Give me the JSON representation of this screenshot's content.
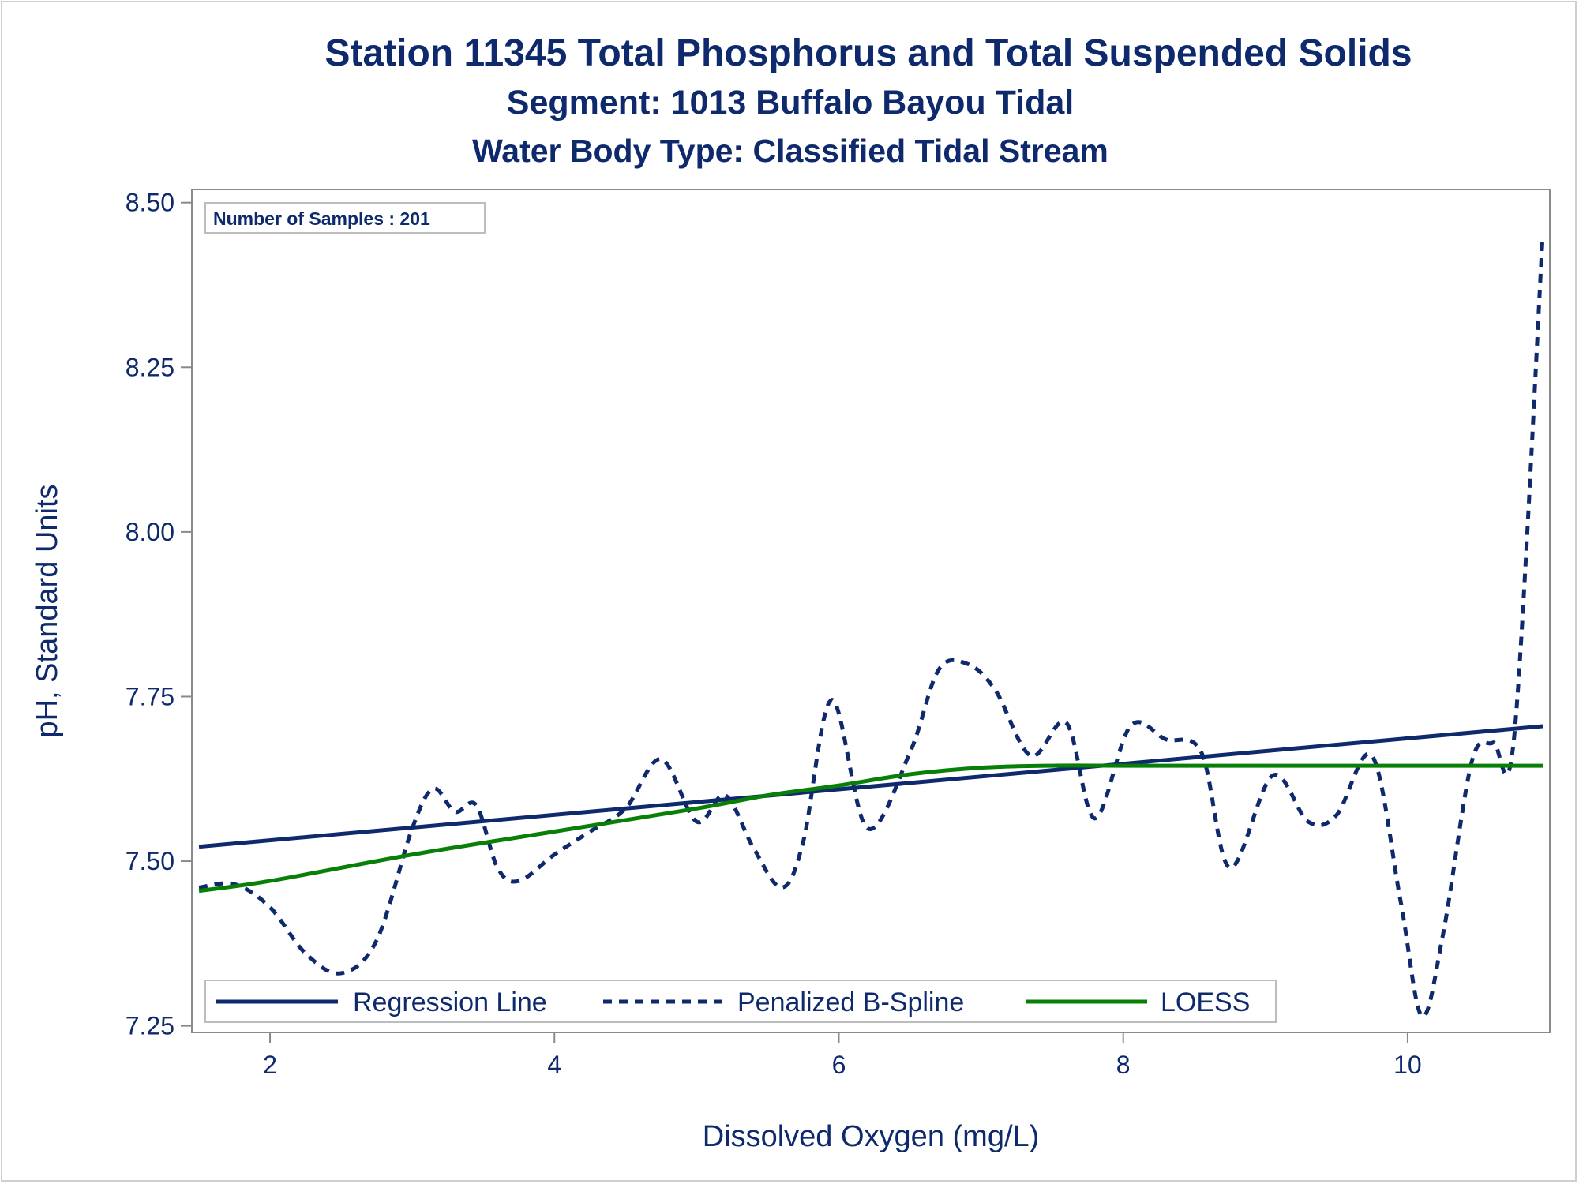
{
  "chart_data": {
    "type": "line",
    "title": "Station 11345  Total Phosphorus and Total Suspended Solids",
    "subtitle": "Segment: 1013  Buffalo Bayou Tidal",
    "subtitle2": "Water Body Type: Classified Tidal Stream",
    "xlabel": "Dissolved Oxygen (mg/L)",
    "ylabel": "pH, Standard Units",
    "xlim": [
      1.45,
      11.0
    ],
    "ylim": [
      7.24,
      8.52
    ],
    "xticks": [
      2,
      4,
      6,
      8,
      10
    ],
    "yticks": [
      7.25,
      7.5,
      7.75,
      8.0,
      8.25,
      8.5
    ],
    "ytick_labels": [
      "7.25",
      "7.50",
      "7.75",
      "8.00",
      "8.25",
      "8.50"
    ],
    "inset_text": "Number of Samples : 201",
    "legend_position": "bottom-left inside",
    "grid": false,
    "series": [
      {
        "name": "Regression Line",
        "color": "#0e2a6d",
        "style": "solid",
        "x": [
          1.5,
          10.95
        ],
        "y": [
          7.522,
          7.705
        ]
      },
      {
        "name": "Penalized B-Spline",
        "color": "#0e2a6d",
        "style": "dashed",
        "x": [
          1.5,
          1.75,
          2.0,
          2.25,
          2.5,
          2.75,
          3.0,
          3.15,
          3.3,
          3.45,
          3.6,
          3.75,
          4.0,
          4.25,
          4.5,
          4.75,
          5.0,
          5.2,
          5.4,
          5.6,
          5.75,
          5.95,
          6.2,
          6.5,
          6.7,
          6.9,
          7.1,
          7.35,
          7.6,
          7.8,
          8.05,
          8.3,
          8.55,
          8.75,
          9.05,
          9.3,
          9.5,
          9.75,
          9.95,
          10.1,
          10.25,
          10.45,
          10.6,
          10.75,
          10.95
        ],
        "y": [
          7.46,
          7.465,
          7.43,
          7.36,
          7.33,
          7.38,
          7.55,
          7.61,
          7.575,
          7.585,
          7.49,
          7.47,
          7.51,
          7.545,
          7.58,
          7.655,
          7.56,
          7.6,
          7.52,
          7.46,
          7.53,
          7.745,
          7.55,
          7.665,
          7.79,
          7.8,
          7.76,
          7.66,
          7.71,
          7.565,
          7.705,
          7.685,
          7.665,
          7.49,
          7.63,
          7.56,
          7.57,
          7.66,
          7.44,
          7.265,
          7.39,
          7.65,
          7.68,
          7.69,
          8.45
        ]
      },
      {
        "name": "LOESS",
        "color": "#088008",
        "style": "solid",
        "x": [
          1.5,
          2.0,
          3.0,
          4.0,
          5.0,
          5.5,
          6.0,
          6.5,
          7.0,
          7.5,
          8.0,
          9.0,
          10.0,
          10.95
        ],
        "y": [
          7.455,
          7.47,
          7.51,
          7.545,
          7.58,
          7.6,
          7.615,
          7.632,
          7.642,
          7.645,
          7.645,
          7.645,
          7.645,
          7.645
        ]
      }
    ]
  }
}
